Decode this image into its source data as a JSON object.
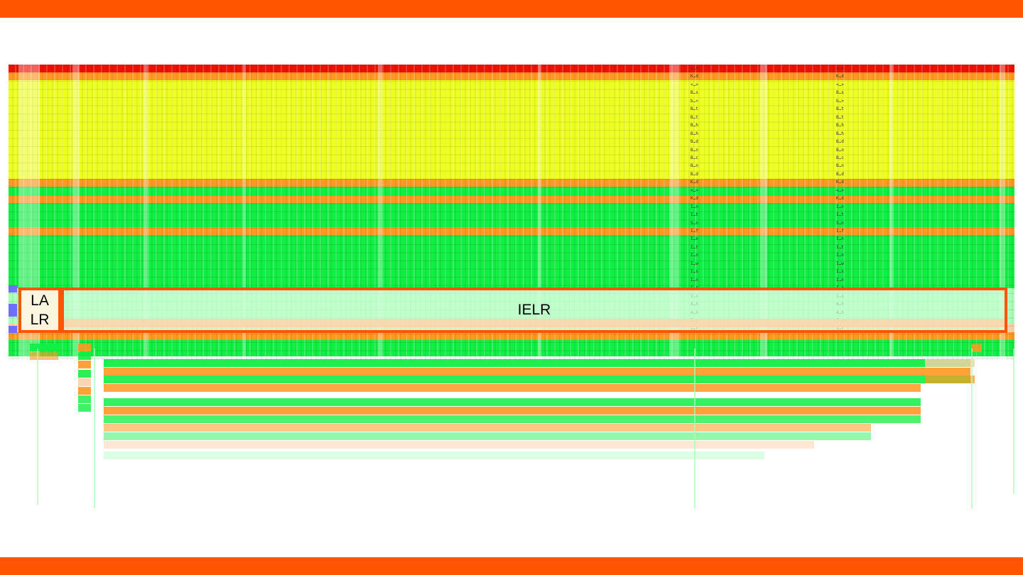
{
  "colors": {
    "frame_bar": "#ff5500",
    "red": "#ee1100",
    "yellow": "#eeff22",
    "orange": "#ff9922",
    "green": "#11ee44",
    "light_green": "#a8ffb8",
    "peach": "#ffd0a8",
    "blue": "#6f6fff"
  },
  "bands": [
    {
      "color": "red",
      "height": 11
    },
    {
      "color": "orange",
      "height": 11
    },
    {
      "color": "yellow",
      "height": 139
    },
    {
      "color": "orange",
      "height": 11
    },
    {
      "color": "green",
      "height": 12
    },
    {
      "color": "orange",
      "height": 11
    },
    {
      "color": "green",
      "height": 34
    },
    {
      "color": "orange",
      "height": 11
    },
    {
      "color": "green",
      "height": 75
    },
    {
      "color": "light_green",
      "height": 50
    },
    {
      "color": "peach",
      "height": 12
    },
    {
      "color": "orange",
      "height": 11
    },
    {
      "color": "green",
      "height": 23
    }
  ],
  "row_labels": [
    "<…>",
    "K…d",
    "<…>",
    "B…s",
    "b…>",
    "B…t",
    "B…t",
    "B…h",
    "B…h",
    "B…d",
    "B…n",
    "B…c",
    "B…n",
    "B…d",
    "K…d",
    "<…>",
    "K…d",
    "I…n",
    "I…t",
    "S…n",
    "I…f",
    "I…n",
    "I…t",
    "I…n",
    "I…w",
    "I…s",
    "I…n",
    "I…r",
    "I…s",
    "A…h",
    "A…h",
    "I…s",
    "I…r"
  ],
  "boxes": {
    "lalr": {
      "line1": "LA",
      "line2": "LR"
    },
    "ielr": {
      "label": "IELR"
    }
  }
}
